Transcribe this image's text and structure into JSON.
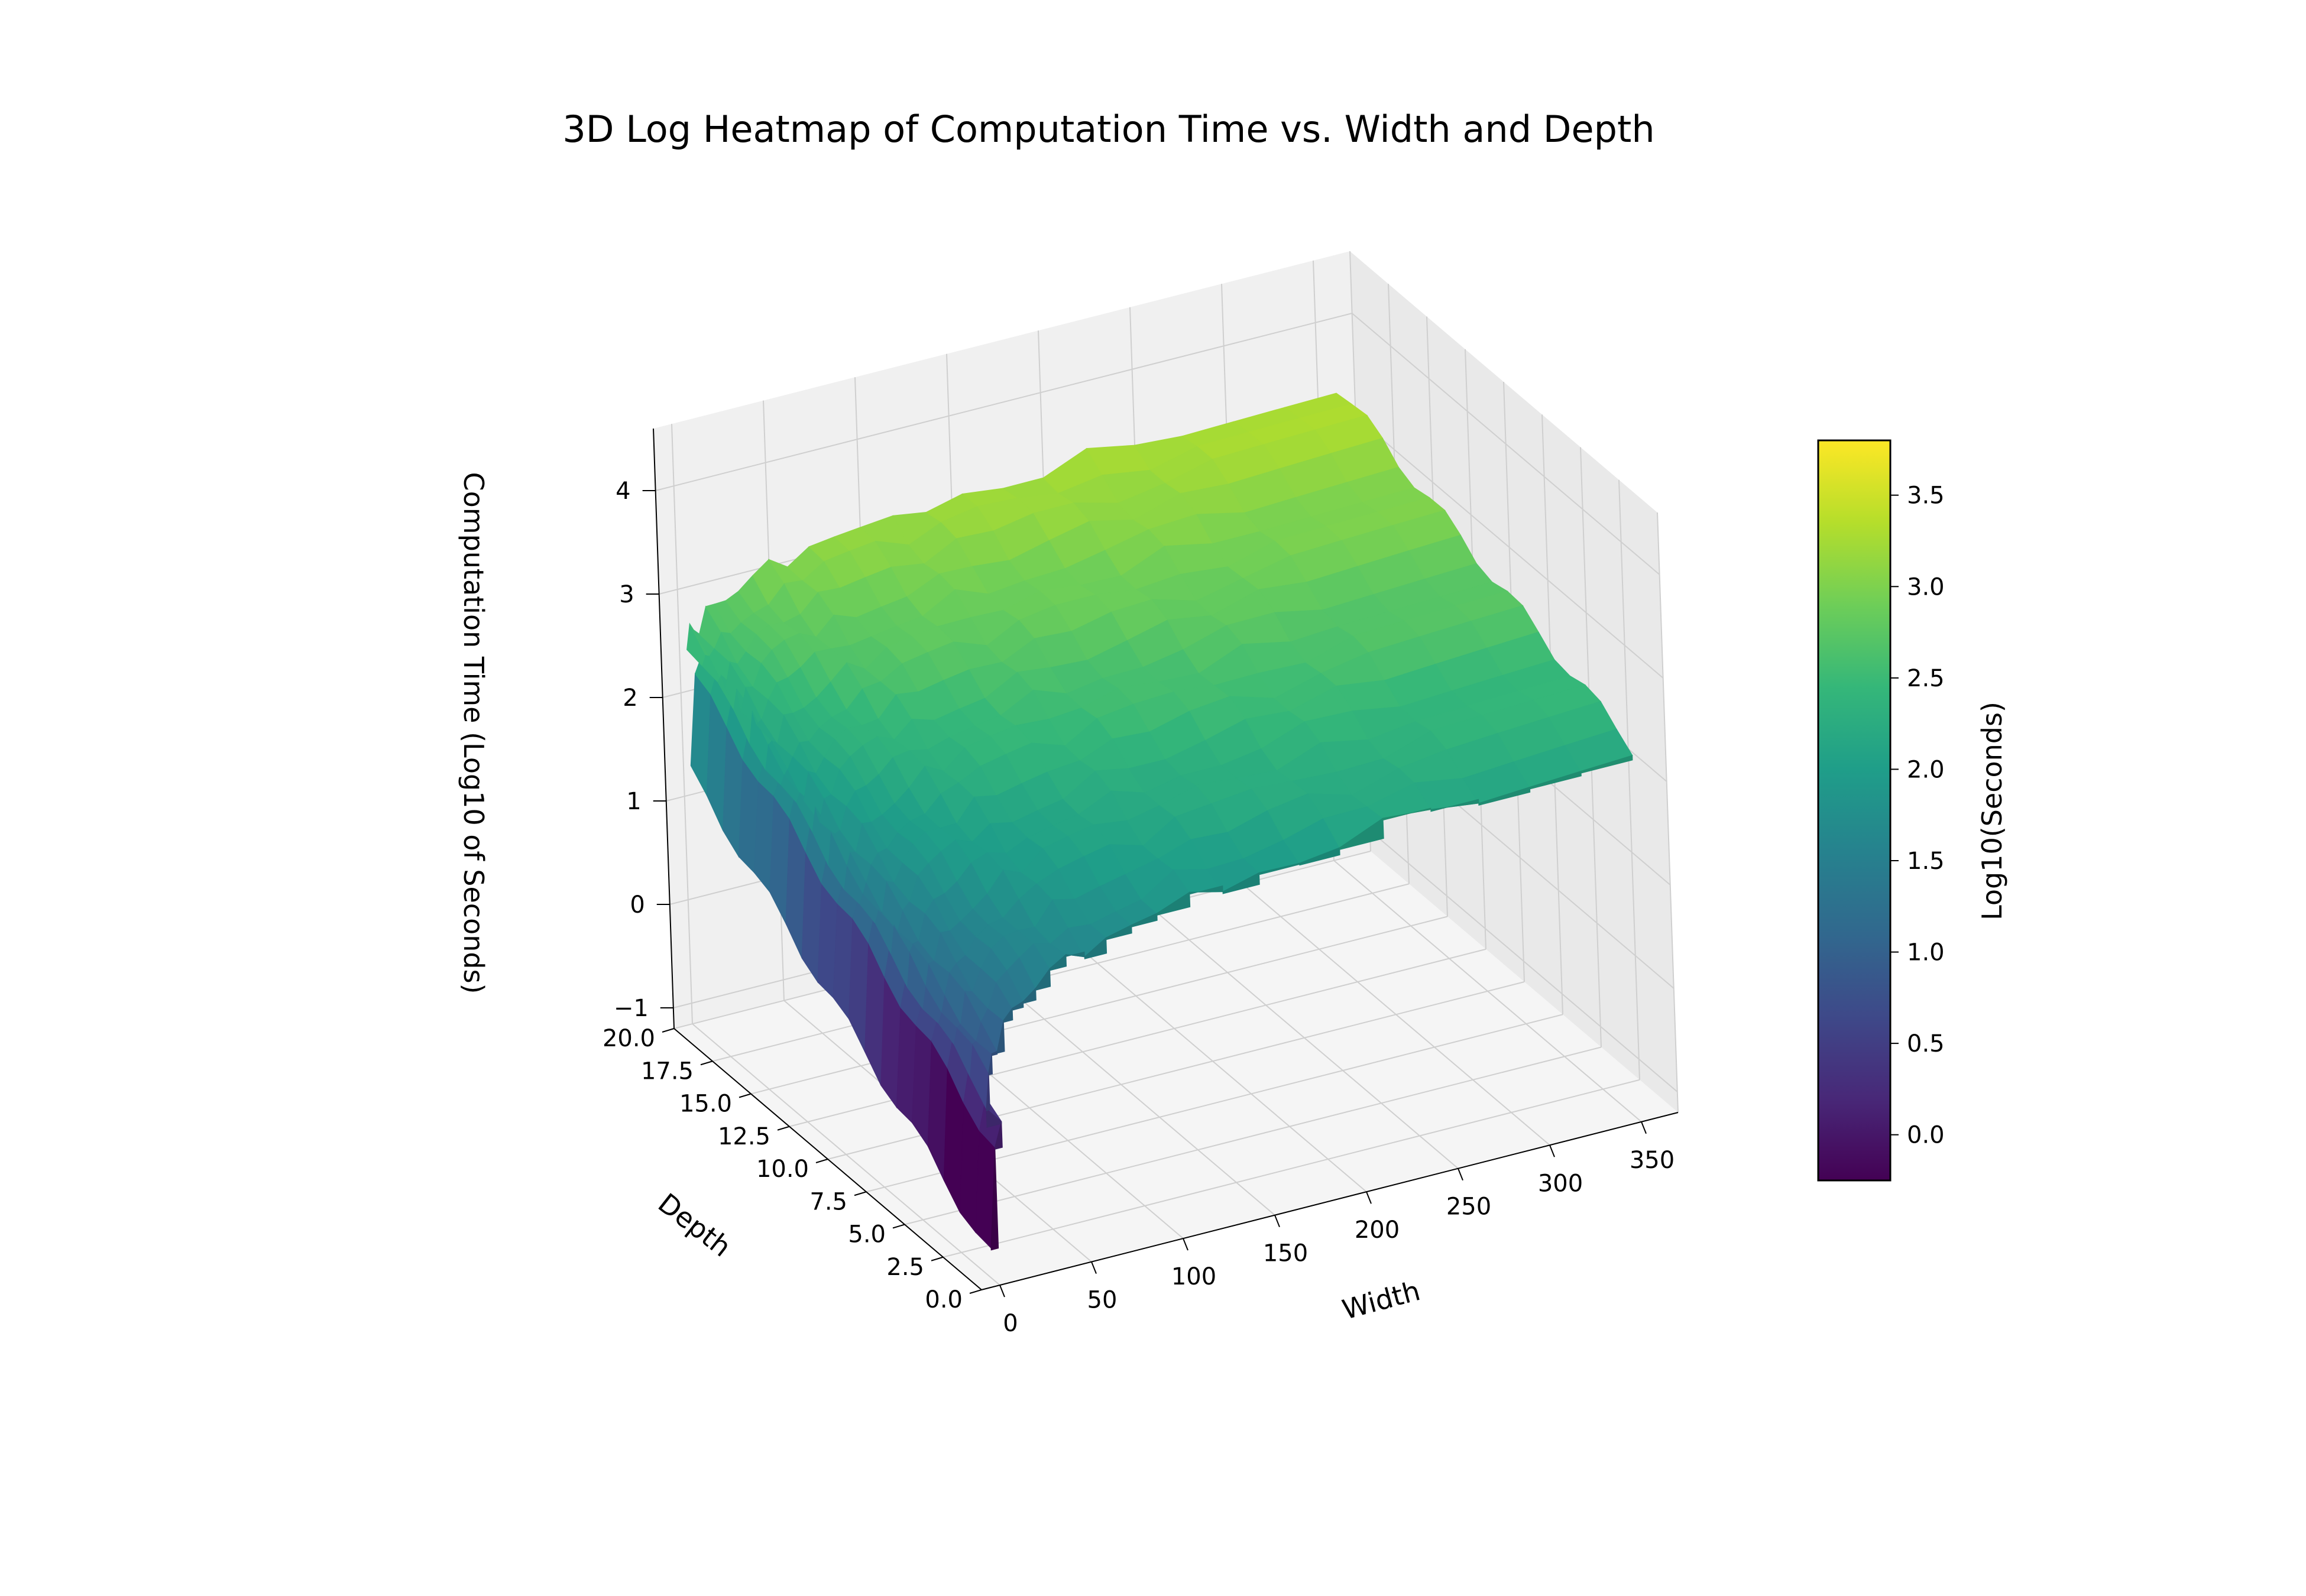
{
  "chart_data": {
    "type": "surface3d",
    "title": "3D Log Heatmap of Computation Time vs. Width and Depth",
    "xlabel": "Width",
    "ylabel": "Depth",
    "zlabel": "Computation Time (Log10 of Seconds)",
    "colorbar_label": "Log10(Seconds)",
    "colormap": "viridis",
    "colormap_stops": [
      "#440154",
      "#482878",
      "#3e4989",
      "#31688e",
      "#26828e",
      "#1f9e89",
      "#35b779",
      "#6ece58",
      "#b5de2b",
      "#fde725"
    ],
    "x_ticks": [
      "0",
      "50",
      "100",
      "150",
      "200",
      "250",
      "300",
      "350"
    ],
    "y_ticks": [
      "0.0",
      "2.5",
      "5.0",
      "7.5",
      "10.0",
      "12.5",
      "15.0",
      "17.5",
      "20.0"
    ],
    "z_ticks": [
      "−1",
      "0",
      "1",
      "2",
      "3",
      "4"
    ],
    "colorbar_ticks": [
      "0.0",
      "0.5",
      "1.0",
      "1.5",
      "2.0",
      "2.5",
      "3.0",
      "3.5"
    ],
    "xlim": [
      -10,
      370
    ],
    "ylim": [
      0,
      20
    ],
    "zlim": [
      -1.2,
      4.6
    ],
    "clim": [
      -0.25,
      3.8
    ],
    "surface": {
      "x_range": [
        1,
        360
      ],
      "y_range": [
        1,
        20
      ],
      "model": "log10 time rises with depth and with width; lowest near width 1, depth 1",
      "z_min": -1.1,
      "z_max": 3.85
    }
  }
}
